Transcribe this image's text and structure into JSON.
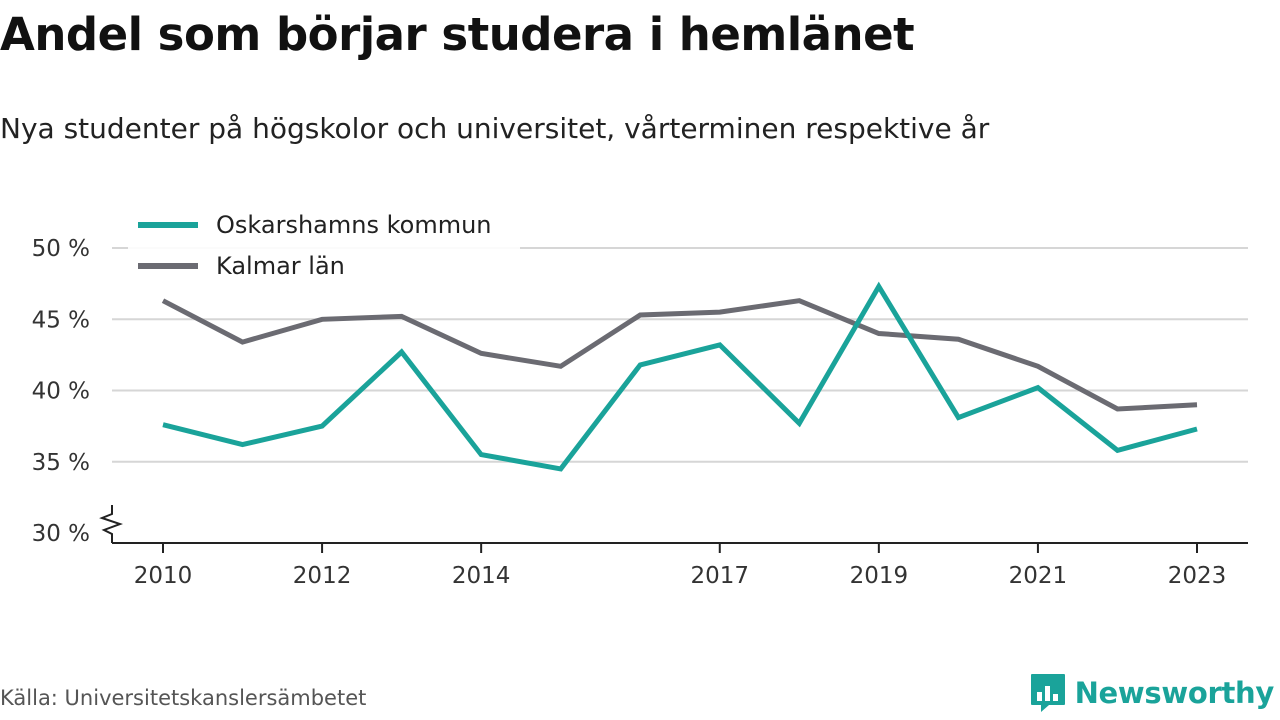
{
  "chart_data": {
    "type": "line",
    "title": "Andel som börjar studera i hemlänet",
    "subtitle": "Nya studenter på högskolor och universitet, vårterminen respektive år",
    "x": [
      2010,
      2011,
      2012,
      2013,
      2014,
      2015,
      2016,
      2017,
      2018,
      2019,
      2020,
      2021,
      2022,
      2023
    ],
    "x_ticks": [
      "2010",
      "2012",
      "2014",
      "2017",
      "2019",
      "2021",
      "2023"
    ],
    "y_ticks": [
      "30 %",
      "35 %",
      "40 %",
      "45 %",
      "50 %"
    ],
    "ylim": [
      30,
      50
    ],
    "grid": true,
    "legend_position": "top-left",
    "series": [
      {
        "name": "Oskarshamns kommun",
        "color": "#1aa39a",
        "values": [
          37.6,
          36.2,
          37.5,
          42.7,
          35.5,
          34.5,
          41.8,
          43.2,
          37.7,
          47.3,
          38.1,
          40.2,
          35.8,
          37.3
        ]
      },
      {
        "name": "Kalmar län",
        "color": "#6b6b72",
        "values": [
          46.3,
          43.4,
          45.0,
          45.2,
          42.6,
          41.7,
          45.3,
          45.5,
          46.3,
          44.0,
          43.6,
          41.7,
          38.7,
          39.0
        ]
      }
    ]
  },
  "footer": {
    "source": "Källa: Universitetskanslersämbetet",
    "brand": "Newsworthy",
    "brand_icon": "bar-chart-speech-bubble-icon"
  }
}
